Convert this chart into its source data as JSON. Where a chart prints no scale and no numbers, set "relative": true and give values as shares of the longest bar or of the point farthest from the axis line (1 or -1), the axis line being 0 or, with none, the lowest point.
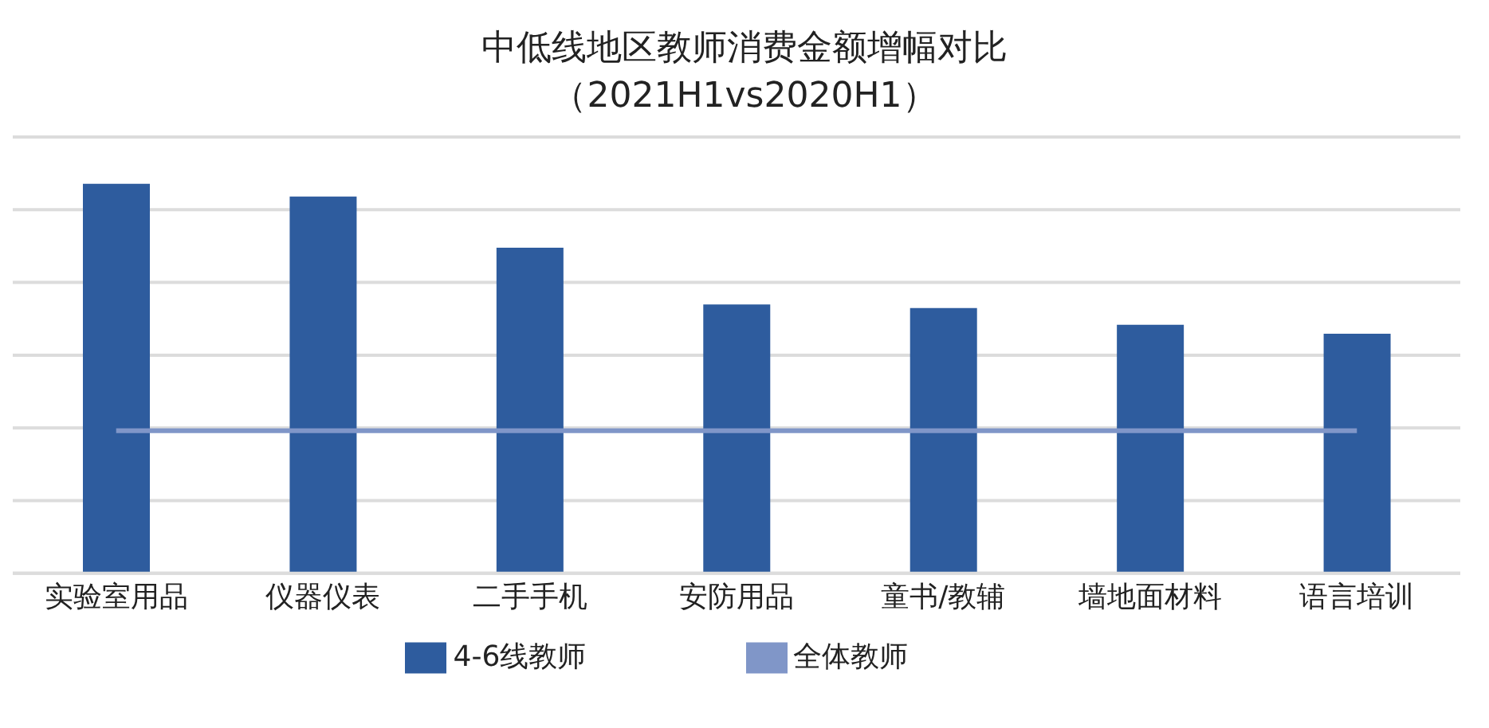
{
  "chart_data": {
    "type": "bar",
    "title": "中低线地区教师消费金额增幅对比",
    "subtitle": "（2021H1vs2020H1）",
    "relative": true,
    "grid": "y",
    "legend": "bottom",
    "categories": [
      "实验室用品",
      "仪器仪表",
      "二手手机",
      "安防用品",
      "童书/教辅",
      "墙地面材料",
      "语言培训"
    ],
    "series": [
      {
        "name": "4-6线教师",
        "color": "#2e5c9e",
        "values": [
          1,
          0.967,
          0.836,
          0.69,
          0.681,
          0.638,
          0.615
        ]
      },
      {
        "name": "全体教师",
        "type": "line",
        "color": "#8096c8",
        "values": [
          0.366,
          0.366,
          0.366,
          0.366,
          0.366,
          0.366,
          0.366
        ]
      }
    ]
  }
}
